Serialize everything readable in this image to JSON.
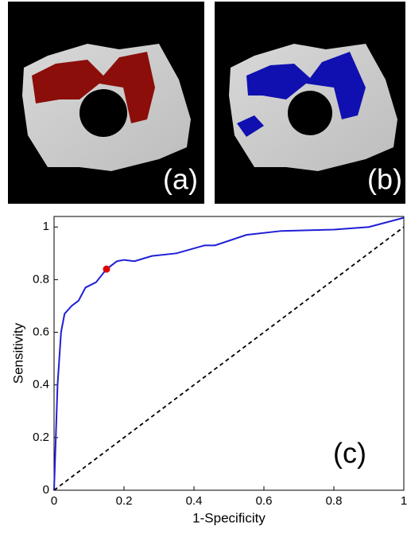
{
  "panels": [
    "(a)",
    "(b)"
  ],
  "chart_data": {
    "type": "line",
    "annotation": "(c)",
    "xlabel": "1-Specificity",
    "ylabel": "Sensitivity",
    "xlim": [
      0,
      1
    ],
    "ylim": [
      0,
      1.04
    ],
    "xticks": [
      0,
      0.2,
      0.4,
      0.6,
      0.8,
      1
    ],
    "yticks": [
      0,
      0.2,
      0.4,
      0.6,
      0.8,
      1
    ],
    "series": [
      {
        "color": "#1f1fd6",
        "style": "solid",
        "x": [
          0,
          0.005,
          0.01,
          0.02,
          0.03,
          0.05,
          0.07,
          0.09,
          0.12,
          0.15,
          0.18,
          0.2,
          0.23,
          0.28,
          0.35,
          0.43,
          0.46,
          0.55,
          0.65,
          0.8,
          0.9,
          1
        ],
        "values": [
          0,
          0.2,
          0.4,
          0.6,
          0.67,
          0.7,
          0.72,
          0.77,
          0.79,
          0.84,
          0.87,
          0.875,
          0.87,
          0.89,
          0.9,
          0.93,
          0.93,
          0.97,
          0.985,
          0.99,
          1.0,
          1.035
        ]
      },
      {
        "color": "#000000",
        "style": "dashed",
        "x": [
          0,
          1
        ],
        "values": [
          0,
          1
        ]
      },
      {
        "color": "#e00000",
        "style": "point",
        "x": [
          0.15
        ],
        "values": [
          0.84
        ]
      }
    ]
  }
}
